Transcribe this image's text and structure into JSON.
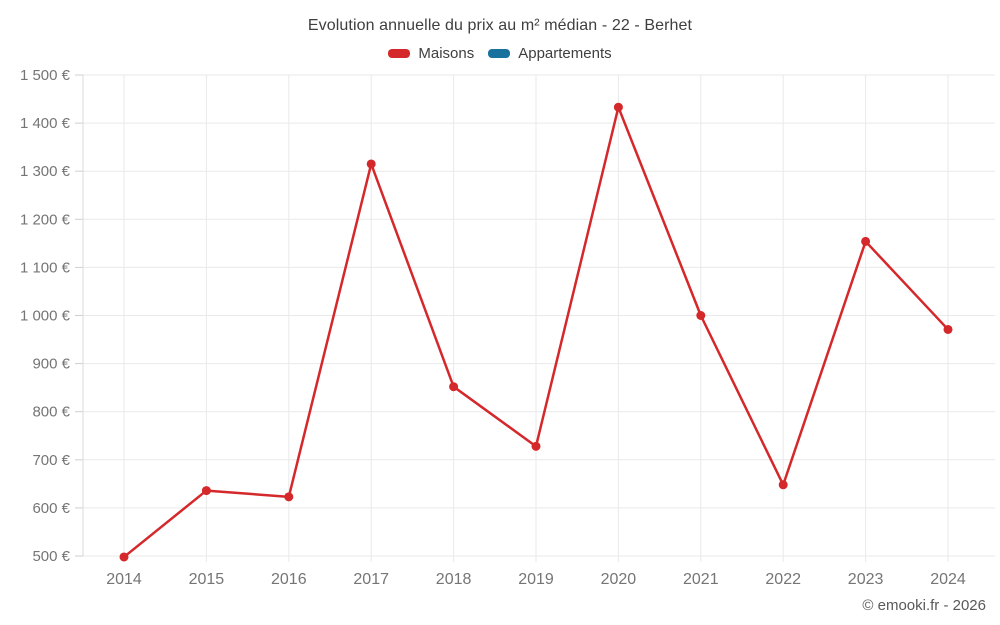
{
  "title": "Evolution annuelle du prix au m² médian - 22 - Berhet",
  "footer": "© emooki.fr - 2026",
  "legend": {
    "items": [
      {
        "label": "Maisons",
        "color": "#d5282b"
      },
      {
        "label": "Appartements",
        "color": "#19719e"
      }
    ]
  },
  "chart_data": {
    "type": "line",
    "title": "Evolution annuelle du prix au m² médian - 22 - Berhet",
    "categories": [
      "2014",
      "2015",
      "2016",
      "2017",
      "2018",
      "2019",
      "2020",
      "2021",
      "2022",
      "2023",
      "2024"
    ],
    "series": [
      {
        "name": "Maisons",
        "color": "#d5282b",
        "values": [
          498,
          636,
          623,
          1315,
          852,
          728,
          1433,
          1000,
          648,
          1154,
          971
        ]
      },
      {
        "name": "Appartements",
        "color": "#19719e",
        "values": []
      }
    ],
    "xlabel": "",
    "ylabel": "",
    "ylim": [
      500,
      1500
    ],
    "ytick_step": 100,
    "ytick_labels": [
      "500 €",
      "600 €",
      "700 €",
      "800 €",
      "900 €",
      "1 000 €",
      "1 100 €",
      "1 200 €",
      "1 300 €",
      "1 400 €",
      "1 500 €"
    ],
    "currency_suffix": " €",
    "grid": true,
    "legend_position": "top",
    "marker": "circle"
  },
  "colors": {
    "grid_line": "#e9e9e9",
    "axis_line": "#d9d9d9",
    "tick": "#cfcfcf",
    "axis_text": "#757575",
    "title_text": "#3f3f3f"
  }
}
